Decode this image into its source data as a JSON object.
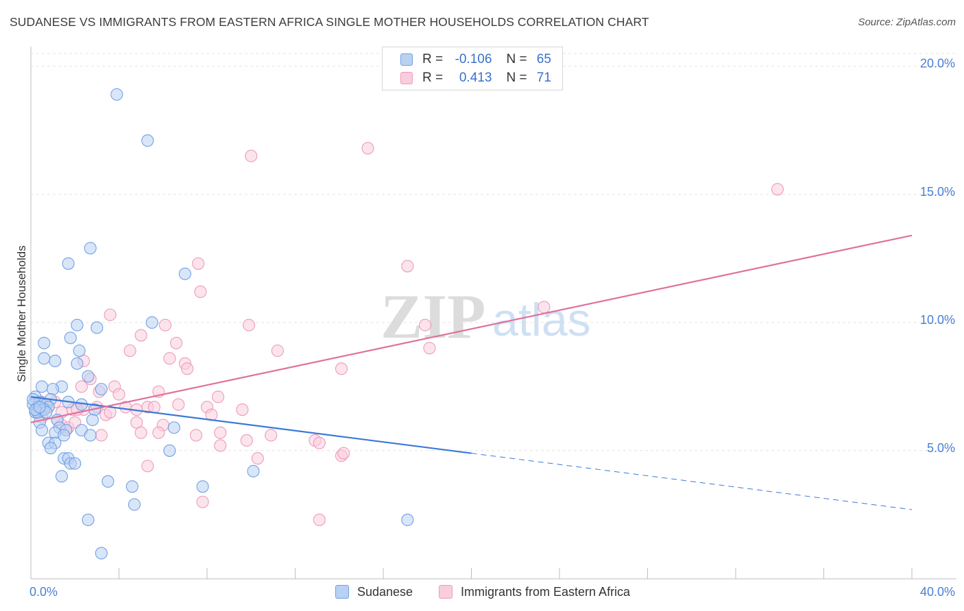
{
  "chart_data": {
    "type": "scatter",
    "title": "SUDANESE VS IMMIGRANTS FROM EASTERN AFRICA SINGLE MOTHER HOUSEHOLDS CORRELATION CHART",
    "source": "Source: ZipAtlas.com",
    "watermark": "ZIPatlas",
    "ylabel": "Single Mother Households",
    "xlim": [
      0,
      40
    ],
    "ylim": [
      0,
      20.5
    ],
    "x_tick_labels": [
      "0.0%",
      "40.0%"
    ],
    "y_ticks": [
      5,
      10,
      15,
      20
    ],
    "y_tick_labels": [
      "5.0%",
      "10.0%",
      "15.0%",
      "20.0%"
    ],
    "legend": {
      "r_label": "R =",
      "n_label": "N =",
      "entries": [
        {
          "r": "-0.106",
          "n": "65"
        },
        {
          "r": "0.413",
          "n": "71"
        }
      ]
    },
    "series": [
      {
        "name": "Sudanese",
        "color": "#6fa0e6",
        "fill": "#b9d1f3",
        "line_color": "#3a78d8",
        "trend": {
          "x0": 0,
          "y0": 7.1,
          "x1": 20,
          "y1": 4.9,
          "x_end": 40
        },
        "points": [
          [
            3.9,
            18.9
          ],
          [
            5.3,
            17.1
          ],
          [
            2.7,
            12.9
          ],
          [
            1.7,
            12.3
          ],
          [
            7.0,
            11.9
          ],
          [
            2.1,
            9.9
          ],
          [
            3.0,
            9.8
          ],
          [
            5.5,
            10.0
          ],
          [
            0.6,
            9.2
          ],
          [
            1.8,
            9.4
          ],
          [
            2.2,
            8.9
          ],
          [
            0.6,
            8.6
          ],
          [
            1.1,
            8.5
          ],
          [
            2.1,
            8.4
          ],
          [
            2.6,
            7.9
          ],
          [
            0.5,
            7.5
          ],
          [
            1.4,
            7.5
          ],
          [
            1.0,
            7.4
          ],
          [
            3.2,
            7.4
          ],
          [
            0.2,
            7.1
          ],
          [
            0.9,
            7.0
          ],
          [
            0.1,
            6.8
          ],
          [
            0.4,
            6.9
          ],
          [
            0.3,
            6.7
          ],
          [
            0.7,
            6.8
          ],
          [
            1.7,
            6.9
          ],
          [
            2.3,
            6.8
          ],
          [
            0.2,
            6.5
          ],
          [
            0.5,
            6.6
          ],
          [
            0.8,
            6.7
          ],
          [
            2.9,
            6.6
          ],
          [
            0.4,
            6.1
          ],
          [
            1.2,
            6.2
          ],
          [
            2.8,
            6.2
          ],
          [
            1.3,
            5.9
          ],
          [
            1.6,
            5.8
          ],
          [
            2.3,
            5.8
          ],
          [
            0.5,
            5.8
          ],
          [
            1.1,
            5.7
          ],
          [
            1.5,
            5.6
          ],
          [
            2.7,
            5.6
          ],
          [
            6.5,
            5.9
          ],
          [
            0.8,
            5.3
          ],
          [
            1.1,
            5.3
          ],
          [
            0.9,
            5.1
          ],
          [
            1.5,
            4.7
          ],
          [
            1.7,
            4.7
          ],
          [
            1.8,
            4.5
          ],
          [
            2.0,
            4.5
          ],
          [
            6.3,
            5.0
          ],
          [
            10.1,
            4.2
          ],
          [
            1.4,
            4.0
          ],
          [
            3.5,
            3.8
          ],
          [
            4.6,
            3.6
          ],
          [
            7.8,
            3.6
          ],
          [
            4.7,
            2.9
          ],
          [
            2.6,
            2.3
          ],
          [
            17.1,
            2.3
          ],
          [
            3.2,
            1.0
          ],
          [
            0.3,
            6.5
          ],
          [
            0.6,
            6.6
          ],
          [
            0.1,
            7.0
          ],
          [
            0.2,
            6.6
          ],
          [
            0.7,
            6.5
          ],
          [
            0.4,
            6.7
          ]
        ]
      },
      {
        "name": "Immigrants from Eastern Africa",
        "color": "#ee9ab7",
        "fill": "#f9cdde",
        "line_color": "#e0709a",
        "trend": {
          "x0": 0,
          "y0": 6.1,
          "x1": 40,
          "y1": 13.4,
          "x_end": 40
        },
        "points": [
          [
            15.3,
            16.8
          ],
          [
            10.0,
            16.5
          ],
          [
            33.9,
            15.2
          ],
          [
            7.6,
            12.3
          ],
          [
            17.1,
            12.2
          ],
          [
            7.7,
            11.2
          ],
          [
            23.3,
            10.6
          ],
          [
            3.6,
            10.3
          ],
          [
            6.1,
            9.9
          ],
          [
            9.9,
            9.9
          ],
          [
            17.9,
            9.9
          ],
          [
            5.0,
            9.5
          ],
          [
            6.6,
            9.2
          ],
          [
            4.5,
            8.9
          ],
          [
            11.2,
            8.9
          ],
          [
            18.1,
            9.0
          ],
          [
            6.3,
            8.6
          ],
          [
            7.0,
            8.4
          ],
          [
            14.1,
            8.2
          ],
          [
            7.1,
            8.2
          ],
          [
            2.4,
            8.5
          ],
          [
            2.7,
            7.8
          ],
          [
            2.3,
            7.5
          ],
          [
            3.8,
            7.5
          ],
          [
            5.8,
            7.3
          ],
          [
            3.1,
            7.3
          ],
          [
            4.0,
            7.2
          ],
          [
            8.5,
            7.1
          ],
          [
            0.5,
            6.9
          ],
          [
            1.1,
            6.9
          ],
          [
            0.8,
            6.7
          ],
          [
            1.9,
            6.6
          ],
          [
            2.4,
            6.6
          ],
          [
            3.0,
            6.7
          ],
          [
            4.3,
            6.7
          ],
          [
            6.7,
            6.8
          ],
          [
            8.0,
            6.7
          ],
          [
            9.6,
            6.6
          ],
          [
            5.3,
            6.7
          ],
          [
            5.6,
            6.7
          ],
          [
            4.8,
            6.6
          ],
          [
            0.4,
            6.5
          ],
          [
            1.4,
            6.5
          ],
          [
            2.1,
            6.6
          ],
          [
            3.4,
            6.4
          ],
          [
            8.2,
            6.4
          ],
          [
            3.6,
            6.5
          ],
          [
            1.4,
            6.0
          ],
          [
            1.7,
            5.9
          ],
          [
            4.8,
            6.1
          ],
          [
            6.0,
            6.0
          ],
          [
            1.6,
            5.8
          ],
          [
            5.0,
            5.7
          ],
          [
            5.8,
            5.7
          ],
          [
            3.2,
            5.6
          ],
          [
            7.5,
            5.6
          ],
          [
            8.6,
            5.7
          ],
          [
            9.8,
            5.4
          ],
          [
            10.9,
            5.6
          ],
          [
            12.9,
            5.4
          ],
          [
            13.1,
            5.3
          ],
          [
            8.6,
            5.2
          ],
          [
            14.1,
            4.8
          ],
          [
            14.2,
            4.9
          ],
          [
            10.3,
            4.7
          ],
          [
            5.3,
            4.4
          ],
          [
            7.8,
            3.0
          ],
          [
            13.1,
            2.3
          ],
          [
            0.5,
            6.3
          ],
          [
            1.2,
            6.2
          ],
          [
            2.0,
            6.1
          ]
        ]
      }
    ]
  },
  "legend_bottom": [
    "Sudanese",
    "Immigrants from Eastern Africa"
  ]
}
